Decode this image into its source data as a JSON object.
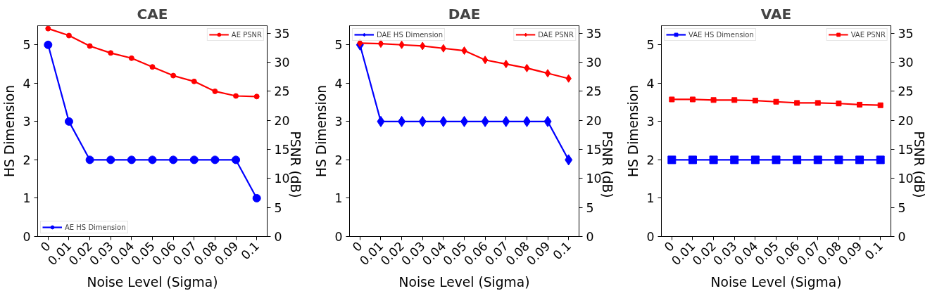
{
  "chart_data": [
    {
      "type": "line",
      "title": "CAE",
      "xlabel": "Noise Level (Sigma)",
      "ylabel": "HS Dimension",
      "y2label": "PSNR (dB)",
      "categories": [
        "0",
        "0.01",
        "0.02",
        "0.03",
        "0.04",
        "0.05",
        "0.06",
        "0.07",
        "0.08",
        "0.09",
        "0.1"
      ],
      "ylim": [
        0,
        5.5
      ],
      "yticks": [
        0,
        1,
        2,
        3,
        4,
        5
      ],
      "y2lim": [
        0,
        36.3
      ],
      "y2ticks": [
        0,
        5,
        10,
        15,
        20,
        25,
        30,
        35
      ],
      "grid": false,
      "line_style": "solid",
      "legend": "top right",
      "series": [
        {
          "name": "AE HS Dimension",
          "color": "#0000ff",
          "marker": "circle",
          "values": [
            5,
            3,
            2,
            2,
            2,
            2,
            2,
            2,
            2,
            2,
            1
          ]
        },
        {
          "name": "AE PSNR",
          "color": "#ff0000",
          "marker": "circle",
          "axis": "y2",
          "values": [
            35.8,
            34.6,
            32.8,
            31.6,
            30.7,
            29.2,
            27.7,
            26.7,
            25.0,
            24.2,
            24.1
          ]
        }
      ]
    },
    {
      "type": "line",
      "title": "DAE",
      "xlabel": "Noise Level (Sigma)",
      "ylabel": "HS Dimension",
      "y2label": "PSNR (dB)",
      "categories": [
        "0",
        "0.01",
        "0.02",
        "0.03",
        "0.04",
        "0.05",
        "0.06",
        "0.07",
        "0.08",
        "0.09",
        "0.1"
      ],
      "ylim": [
        0,
        5.5
      ],
      "yticks": [
        0,
        1,
        2,
        3,
        4,
        5
      ],
      "y2lim": [
        0,
        36.3
      ],
      "y2ticks": [
        0,
        5,
        10,
        15,
        20,
        25,
        30,
        35
      ],
      "grid": false,
      "line_style": "solid",
      "legend": "top",
      "series": [
        {
          "name": "DAE HS Dimension",
          "color": "#0000ff",
          "marker": "diamond",
          "values": [
            5,
            3,
            3,
            3,
            3,
            3,
            3,
            3,
            3,
            3,
            2
          ]
        },
        {
          "name": "DAE PSNR",
          "color": "#ff0000",
          "marker": "diamond",
          "axis": "y2",
          "values": [
            33.3,
            33.2,
            33.0,
            32.8,
            32.4,
            32.0,
            30.4,
            29.7,
            29.0,
            28.1,
            27.2
          ]
        }
      ]
    },
    {
      "type": "line",
      "title": "VAE",
      "xlabel": "Noise Level (Sigma)",
      "ylabel": "HS Dimension",
      "y2label": "PSNR (dB)",
      "categories": [
        "0",
        "0.01",
        "0.02",
        "0.03",
        "0.04",
        "0.05",
        "0.06",
        "0.07",
        "0.08",
        "0.09",
        "0.1"
      ],
      "ylim": [
        0,
        5.5
      ],
      "yticks": [
        0,
        1,
        2,
        3,
        4,
        5
      ],
      "y2lim": [
        0,
        36.3
      ],
      "y2ticks": [
        0,
        5,
        10,
        15,
        20,
        25,
        30,
        35
      ],
      "grid": false,
      "line_style": "solid",
      "legend": "top",
      "series": [
        {
          "name": "VAE HS Dimension",
          "color": "#0000ff",
          "marker": "square",
          "values": [
            2,
            2,
            2,
            2,
            2,
            2,
            2,
            2,
            2,
            2,
            2
          ]
        },
        {
          "name": "VAE PSNR",
          "color": "#ff0000",
          "marker": "square",
          "axis": "y2",
          "values": [
            23.6,
            23.6,
            23.5,
            23.5,
            23.4,
            23.2,
            23.0,
            23.0,
            22.9,
            22.7,
            22.6
          ]
        }
      ]
    }
  ]
}
